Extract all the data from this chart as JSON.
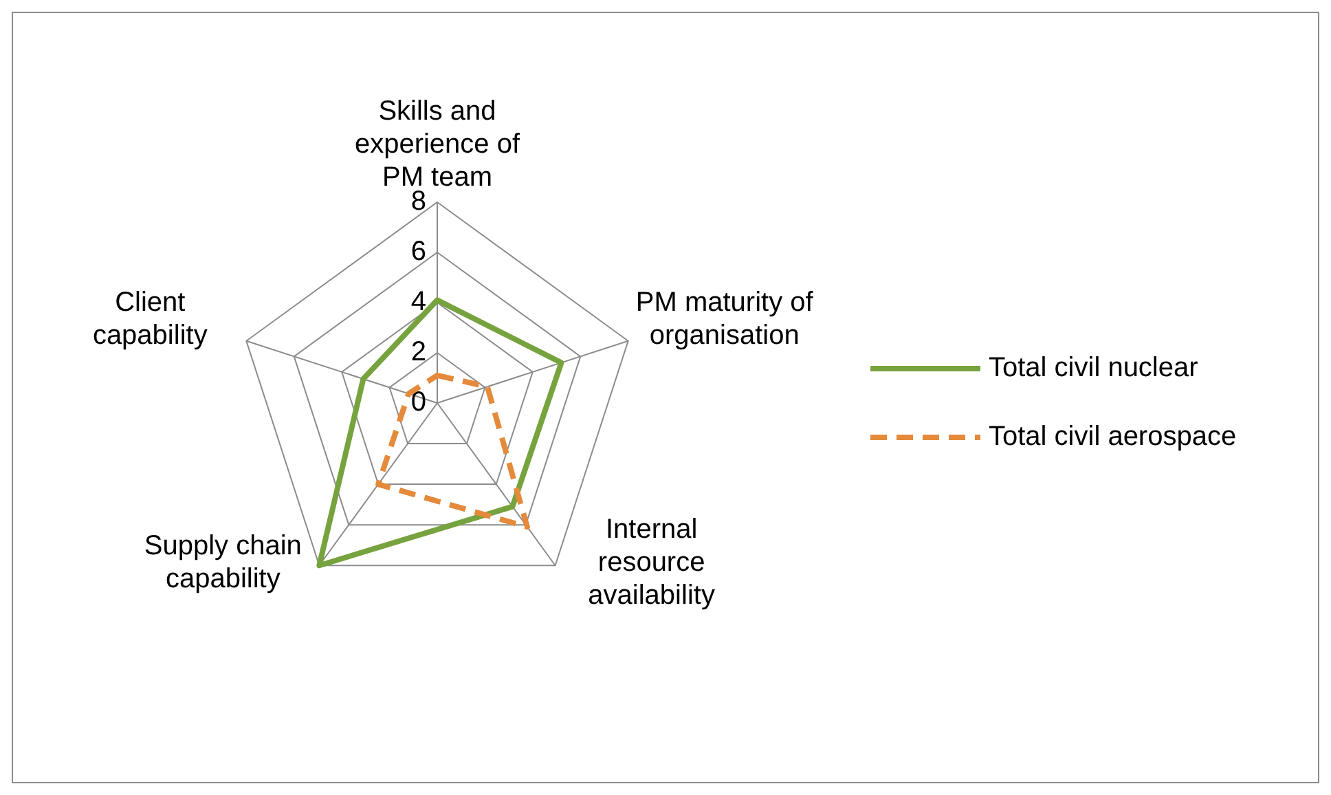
{
  "chart_data": {
    "type": "radar",
    "categories": [
      "Skills and experience of PM team",
      "PM maturity of organisation",
      "Internal resource availability",
      "Supply chain capability",
      "Client capability"
    ],
    "ylim": [
      0,
      8
    ],
    "yticks": [
      0,
      2,
      4,
      6,
      8
    ],
    "legend": "right",
    "grid": true,
    "series": [
      {
        "name": "Total civil nuclear",
        "color": "#77a33f",
        "values": [
          4.1,
          5.2,
          5.1,
          8,
          3.1
        ],
        "line_style": "solid"
      },
      {
        "name": "Total civil aerospace",
        "color": "#e58a3b",
        "values": [
          1.1,
          2.1,
          6.1,
          4,
          1.2
        ],
        "line_style": "dashed"
      }
    ]
  }
}
